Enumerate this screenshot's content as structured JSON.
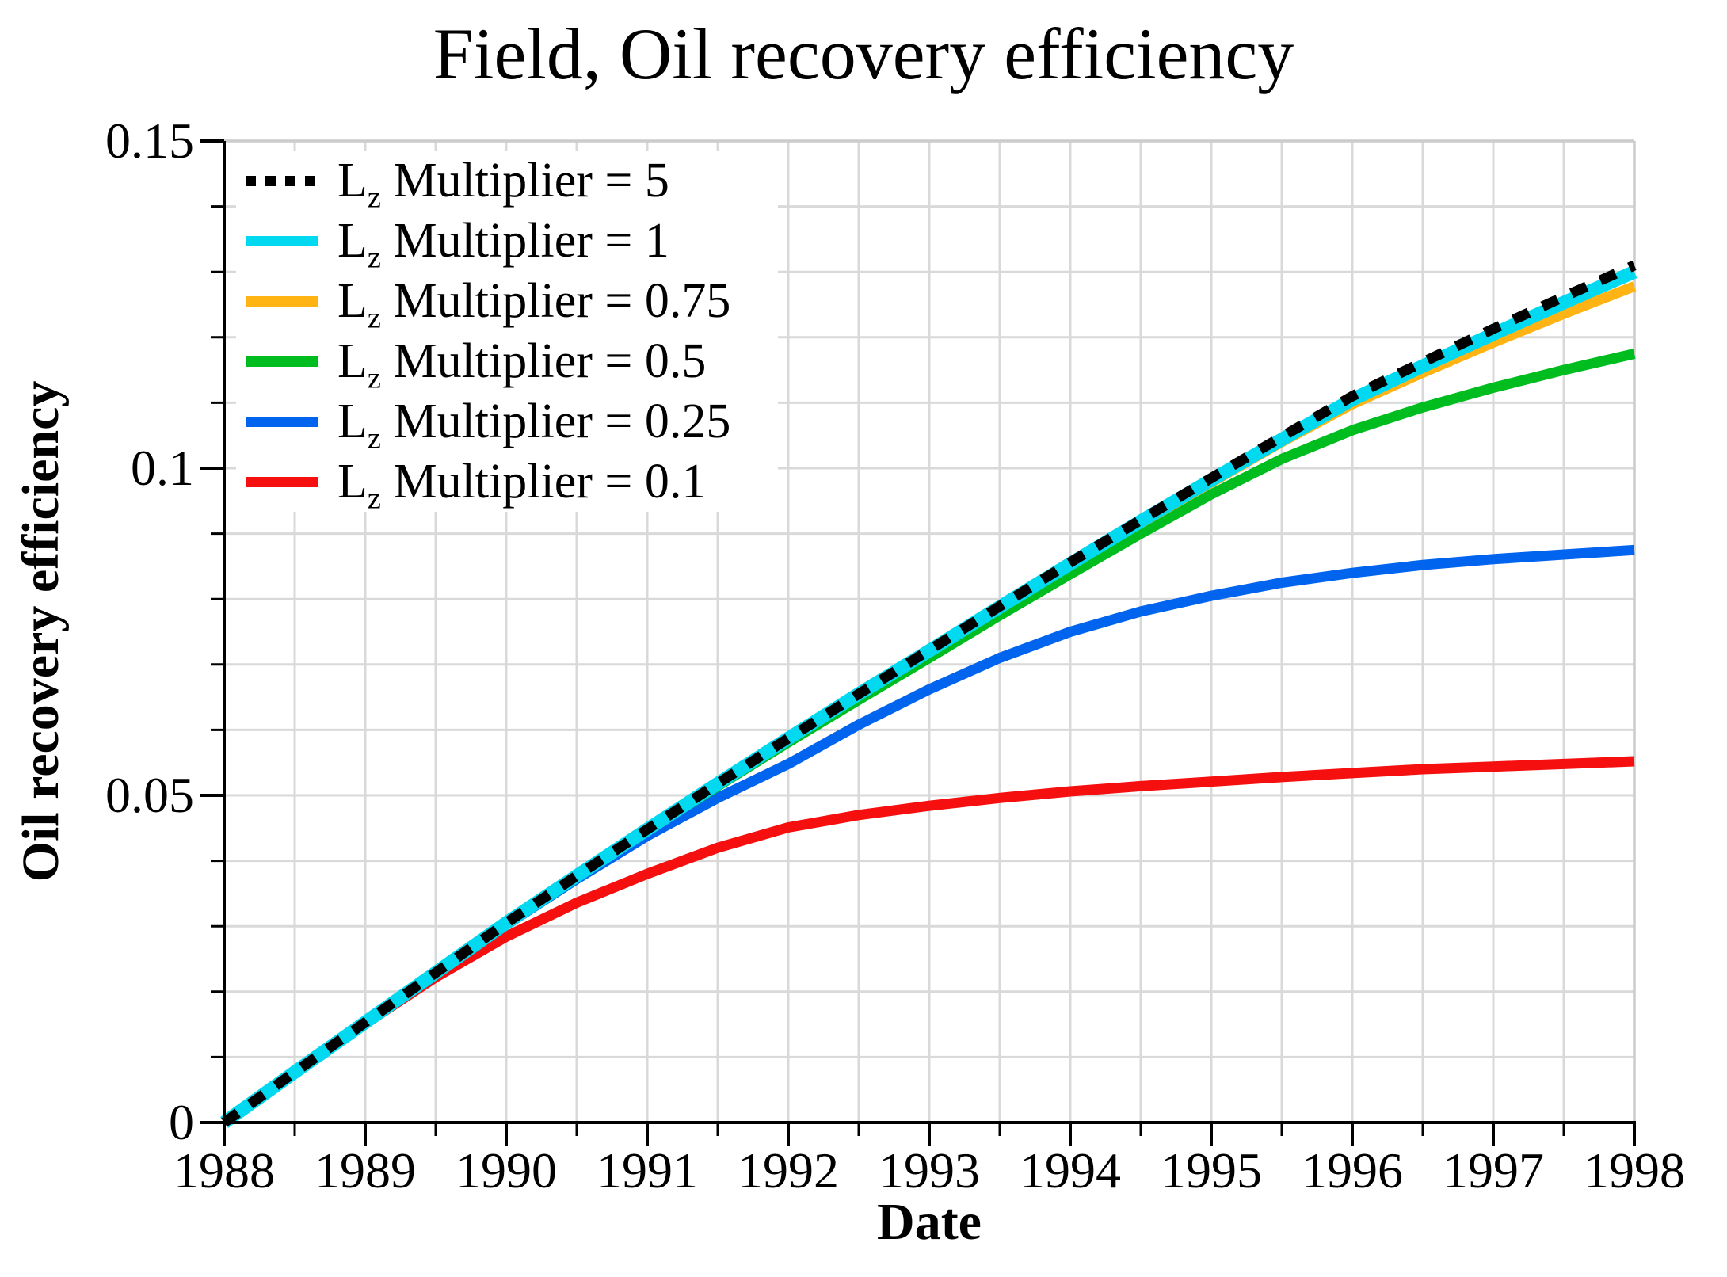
{
  "title": "Field, Oil recovery efficiency",
  "chart_data": {
    "type": "line",
    "title": "Field, Oil recovery efficiency",
    "xlabel": "Date",
    "ylabel": "Oil recovery efficiency",
    "xlim": [
      1988,
      1998
    ],
    "ylim": [
      0,
      0.15
    ],
    "grid": true,
    "grid_color": "#d9d9d9",
    "frame_color": "#cccccc",
    "axis_color": "#000000",
    "x_minor_step": 0.5,
    "y_minor_step": 0.01,
    "x_major_ticks": [
      1988,
      1989,
      1990,
      1991,
      1992,
      1993,
      1994,
      1995,
      1996,
      1997,
      1998
    ],
    "x_tick_labels": [
      "1988",
      "1989",
      "1990",
      "1991",
      "1992",
      "1993",
      "1994",
      "1995",
      "1996",
      "1997",
      "1998"
    ],
    "y_major_ticks": [
      0,
      0.05,
      0.1,
      0.15
    ],
    "y_tick_labels": [
      "0",
      "0.05",
      "0.1",
      "0.15"
    ],
    "legend_position": "top-left",
    "x": [
      1988,
      1988.5,
      1989,
      1989.5,
      1990,
      1990.5,
      1991,
      1991.5,
      1992,
      1992.5,
      1993,
      1993.5,
      1994,
      1994.5,
      1995,
      1995.5,
      1996,
      1996.5,
      1997,
      1997.5,
      1998
    ],
    "series": [
      {
        "name": "Lz Multiplier = 5",
        "label_pre": "L",
        "label_sub": "z",
        "label_rest": " Multiplier = 5",
        "color": "#000000",
        "line_style": "dotted",
        "line_width": 13,
        "values": [
          0,
          0.0077,
          0.0153,
          0.0229,
          0.0305,
          0.0377,
          0.0448,
          0.0518,
          0.0587,
          0.0655,
          0.0722,
          0.0789,
          0.0856,
          0.0921,
          0.0985,
          0.1048,
          0.111,
          0.1162,
          0.1213,
          0.1262,
          0.131
        ]
      },
      {
        "name": "Lz Multiplier = 1",
        "label_pre": "L",
        "label_sub": "z",
        "label_rest": " Multiplier = 1",
        "color": "#00d9f0",
        "line_style": "solid",
        "line_width": 17,
        "values": [
          0,
          0.0077,
          0.0153,
          0.0229,
          0.0305,
          0.0377,
          0.0448,
          0.0518,
          0.0587,
          0.0655,
          0.0721,
          0.0788,
          0.0854,
          0.0919,
          0.0982,
          0.1044,
          0.1105,
          0.1156,
          0.1205,
          0.1253,
          0.13
        ]
      },
      {
        "name": "Lz Multiplier = 0.75",
        "label_pre": "L",
        "label_sub": "z",
        "label_rest": " Multiplier = 0.75",
        "color": "#ffb414",
        "line_style": "solid",
        "line_width": 13,
        "values": [
          0,
          0.0077,
          0.0153,
          0.0229,
          0.0305,
          0.0377,
          0.0448,
          0.0518,
          0.0587,
          0.0655,
          0.0721,
          0.0787,
          0.0853,
          0.0916,
          0.0978,
          0.104,
          0.1098,
          0.1146,
          0.1192,
          0.1236,
          0.1278
        ]
      },
      {
        "name": "Lz Multiplier = 0.5",
        "label_pre": "L",
        "label_sub": "z",
        "label_rest": " Multiplier = 0.5",
        "color": "#00bd1f",
        "line_style": "solid",
        "line_width": 13,
        "values": [
          0,
          0.0077,
          0.0153,
          0.0229,
          0.0304,
          0.0376,
          0.0446,
          0.0514,
          0.0581,
          0.0646,
          0.071,
          0.0775,
          0.0838,
          0.09,
          0.096,
          0.1014,
          0.1058,
          0.1093,
          0.1123,
          0.115,
          0.1175
        ]
      },
      {
        "name": "Lz Multiplier = 0.25",
        "label_pre": "L",
        "label_sub": "z",
        "label_rest": " Multiplier = 0.25",
        "color": "#0064ef",
        "line_style": "solid",
        "line_width": 13,
        "values": [
          0,
          0.0077,
          0.0153,
          0.0228,
          0.0302,
          0.0372,
          0.0438,
          0.0496,
          0.0548,
          0.0608,
          0.0662,
          0.071,
          0.075,
          0.0781,
          0.0805,
          0.0825,
          0.084,
          0.0852,
          0.0861,
          0.0868,
          0.0875
        ]
      },
      {
        "name": "Lz Multiplier = 0.1",
        "label_pre": "L",
        "label_sub": "z",
        "label_rest": " Multiplier = 0.1",
        "color": "#f50f0f",
        "line_style": "solid",
        "line_width": 13,
        "values": [
          0,
          0.0076,
          0.0151,
          0.0222,
          0.0284,
          0.0336,
          0.038,
          0.042,
          0.0451,
          0.047,
          0.0484,
          0.0496,
          0.0506,
          0.0514,
          0.0521,
          0.0528,
          0.0534,
          0.054,
          0.0544,
          0.0548,
          0.0552
        ]
      }
    ]
  }
}
